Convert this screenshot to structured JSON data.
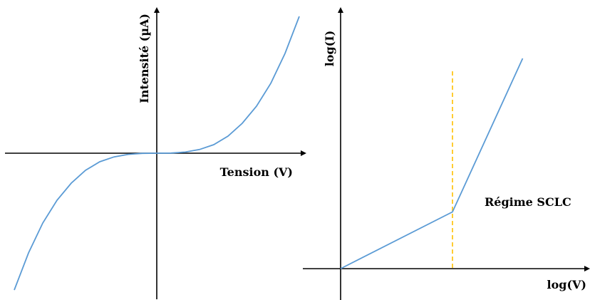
{
  "colors": {
    "curve": "#5b9bd5",
    "threshold": "#ffc000",
    "axis": "#000000"
  },
  "chart_data": [
    {
      "type": "line",
      "title": "",
      "xlabel": "Tension (V)",
      "ylabel": "Intensité (µA)",
      "x_ticks": [],
      "y_ticks": [],
      "grid": false,
      "xlim": [
        -1.0,
        1.0
      ],
      "ylim": [
        -1.0,
        1.0
      ],
      "series": [
        {
          "x": [
            -1.0,
            -0.9,
            -0.8,
            -0.7,
            -0.6,
            -0.5,
            -0.4,
            -0.3,
            -0.2,
            -0.1,
            0.0,
            0.1,
            0.2,
            0.3,
            0.4,
            0.5,
            0.6,
            0.7,
            0.8,
            0.9,
            1.0
          ],
          "y": [
            -0.96,
            -0.7,
            -0.49,
            -0.33,
            -0.21,
            -0.12,
            -0.06,
            -0.026,
            -0.008,
            -0.001,
            0.0,
            0.001,
            0.008,
            0.026,
            0.06,
            0.12,
            0.21,
            0.33,
            0.49,
            0.7,
            0.96
          ]
        }
      ]
    },
    {
      "type": "line",
      "title": "",
      "xlabel": "log(V)",
      "ylabel": "log(I)",
      "x_ticks": [],
      "y_ticks": [],
      "grid": false,
      "scale": "log-log",
      "xlim": [
        0,
        1.0
      ],
      "ylim": [
        0,
        1.0
      ],
      "series": [
        {
          "x": [
            0.0,
            0.43,
            0.7
          ],
          "y": [
            0.0,
            0.27,
            1.0
          ]
        }
      ],
      "threshold_x": 0.43,
      "annotation": "Régime SCLC"
    }
  ]
}
